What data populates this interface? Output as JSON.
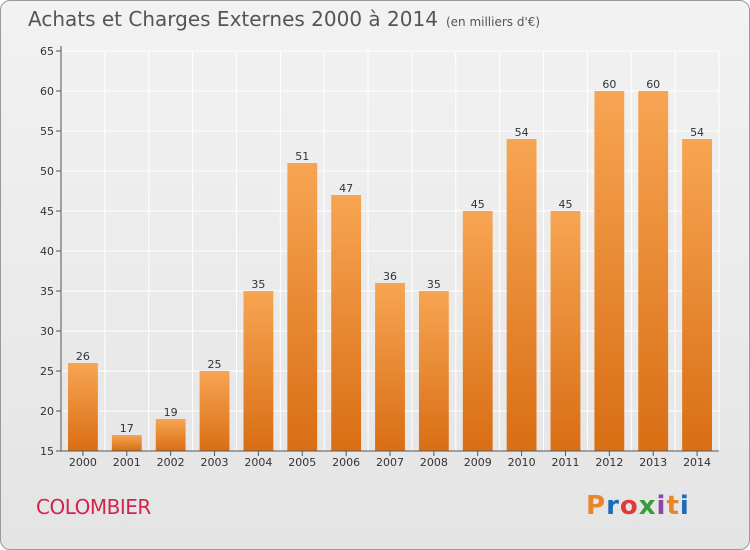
{
  "title": "Achats et Charges Externes 2000 à 2014",
  "unit": "(en milliers d'€)",
  "place": "COLOMBIER",
  "logo": {
    "text": "Proxiti",
    "colors": [
      "#e9852a",
      "#1d6bb5",
      "#e23a3a",
      "#3a9b3a",
      "#8e44ad",
      "#e9852a",
      "#1d6bb5"
    ]
  },
  "colors": {
    "bar_top": "#f7a553",
    "bar_bottom": "#d96e14",
    "grid": "#ffffff",
    "axis": "#555555"
  },
  "chart_data": {
    "type": "bar",
    "title": "Achats et Charges Externes 2000 à 2014",
    "subtitle": "(en milliers d'€)",
    "categories": [
      "2000",
      "2001",
      "2002",
      "2003",
      "2004",
      "2005",
      "2006",
      "2007",
      "2008",
      "2009",
      "2010",
      "2011",
      "2012",
      "2013",
      "2014"
    ],
    "values": [
      26,
      17,
      19,
      25,
      35,
      51,
      47,
      36,
      35,
      45,
      54,
      45,
      60,
      60,
      54
    ],
    "ylim": [
      15,
      65
    ],
    "yticks": [
      15,
      20,
      25,
      30,
      35,
      40,
      45,
      50,
      55,
      60,
      65
    ],
    "grid": true,
    "legend": "none",
    "data_labels": true
  }
}
